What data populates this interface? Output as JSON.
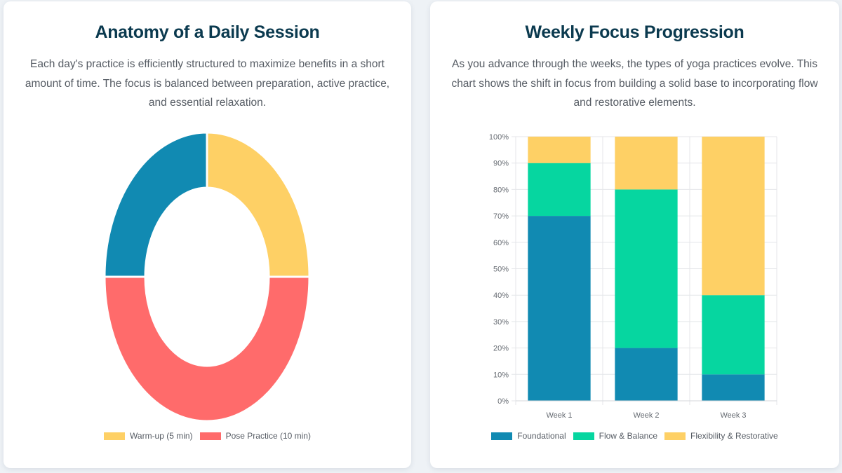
{
  "colors": {
    "yellow": "#fed065",
    "red": "#ff6b6b",
    "blue": "#118ab2",
    "green": "#06d6a0"
  },
  "left_card": {
    "title": "Anatomy of a Daily Session",
    "description": "Each day's practice is efficiently structured to maximize benefits in a short amount of time. The focus is balanced between preparation, active practice, and essential relaxation."
  },
  "right_card": {
    "title": "Weekly Focus Progression",
    "description": "As you advance through the weeks, the types of yoga practices evolve. This chart shows the shift in focus from building a solid base to incorporating flow and restorative elements."
  },
  "chart_data": [
    {
      "type": "pie",
      "variant": "doughnut",
      "legend_position": "bottom",
      "slices": [
        {
          "label": "Warm-up (5 min)",
          "value": 5,
          "color": "#fed065",
          "in_legend": true
        },
        {
          "label": "Pose Practice (10 min)",
          "value": 10,
          "color": "#ff6b6b",
          "in_legend": true
        },
        {
          "label": "",
          "value": 5,
          "color": "#118ab2",
          "in_legend": false
        }
      ]
    },
    {
      "type": "bar",
      "stacked": true,
      "categories": [
        "Week 1",
        "Week 2",
        "Week 3"
      ],
      "series": [
        {
          "name": "Foundational",
          "values": [
            70,
            20,
            10
          ],
          "color": "#118ab2"
        },
        {
          "name": "Flow & Balance",
          "values": [
            20,
            60,
            30
          ],
          "color": "#06d6a0"
        },
        {
          "name": "Flexibility & Restorative",
          "values": [
            10,
            20,
            60
          ],
          "color": "#fed065"
        }
      ],
      "ylim": [
        0,
        100
      ],
      "yticks": [
        "0%",
        "10%",
        "20%",
        "30%",
        "40%",
        "50%",
        "60%",
        "70%",
        "80%",
        "90%",
        "100%"
      ],
      "grid": true,
      "legend_position": "bottom"
    }
  ]
}
